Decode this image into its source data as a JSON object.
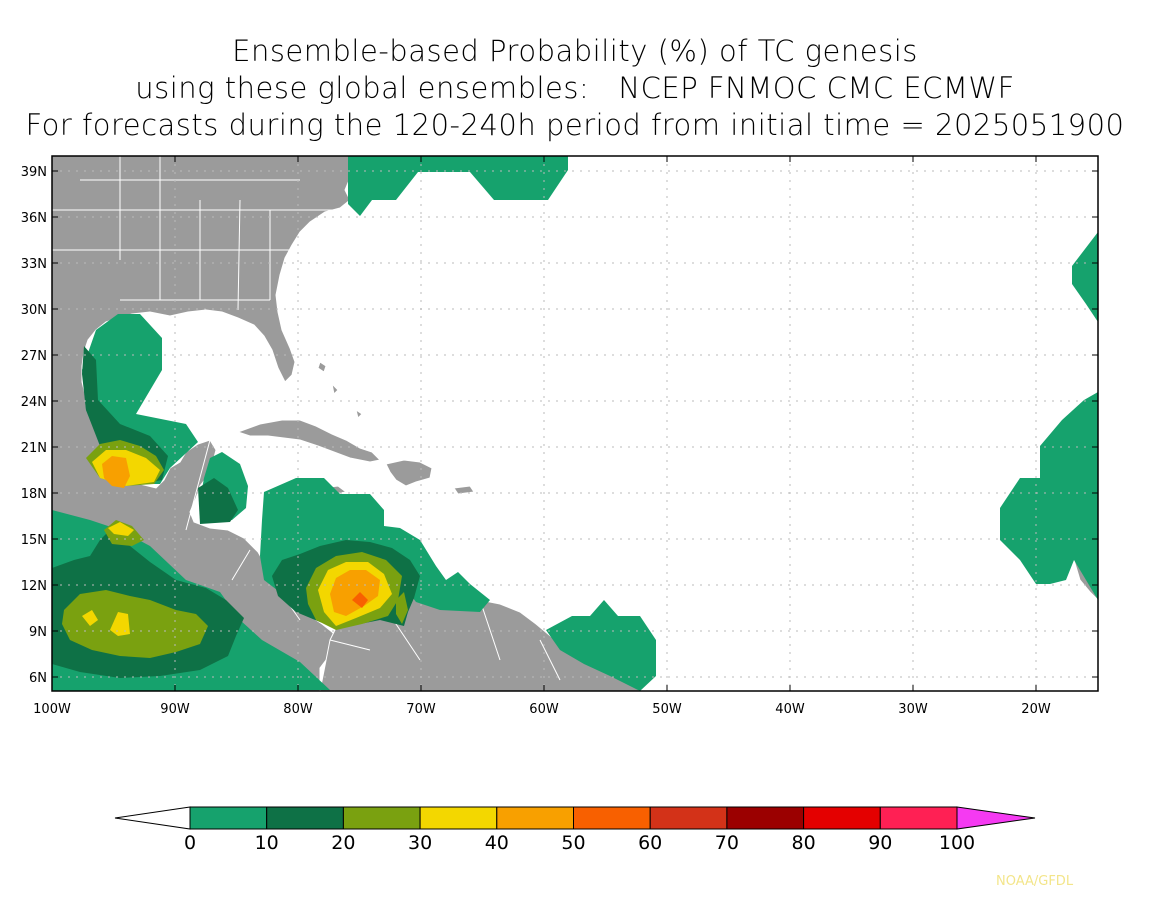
{
  "title": {
    "line1": "Ensemble-based Probability (%) of TC genesis",
    "line2": "using these global ensembles:   NCEP FNMOC CMC ECMWF",
    "line3": "For forecasts during the 120-240h period from initial time = 2025051900"
  },
  "map": {
    "lon_range": [
      -100,
      -15
    ],
    "lat_range": [
      5,
      40
    ],
    "lat_ticks": [
      {
        "value": 39,
        "label": "39N"
      },
      {
        "value": 36,
        "label": "36N"
      },
      {
        "value": 33,
        "label": "33N"
      },
      {
        "value": 30,
        "label": "30N"
      },
      {
        "value": 27,
        "label": "27N"
      },
      {
        "value": 24,
        "label": "24N"
      },
      {
        "value": 21,
        "label": "21N"
      },
      {
        "value": 18,
        "label": "18N"
      },
      {
        "value": 15,
        "label": "15N"
      },
      {
        "value": 12,
        "label": "12N"
      },
      {
        "value": 9,
        "label": "9N"
      },
      {
        "value": 6,
        "label": "6N"
      }
    ],
    "lon_ticks": [
      {
        "value": -100,
        "label": "100W"
      },
      {
        "value": -90,
        "label": "90W"
      },
      {
        "value": -80,
        "label": "80W"
      },
      {
        "value": -70,
        "label": "70W"
      },
      {
        "value": -60,
        "label": "60W"
      },
      {
        "value": -50,
        "label": "50W"
      },
      {
        "value": -40,
        "label": "40W"
      },
      {
        "value": -30,
        "label": "30W"
      },
      {
        "value": -20,
        "label": "20W"
      }
    ],
    "land_color": "#9b9b9b",
    "ocean_color": "#ffffff",
    "grid": "dotted"
  },
  "colorbar": {
    "levels": [
      "0",
      "10",
      "20",
      "30",
      "40",
      "50",
      "60",
      "70",
      "80",
      "90",
      "100"
    ],
    "colors": [
      "#16a26d",
      "#0e7146",
      "#7aa110",
      "#f3d700",
      "#f8a000",
      "#f86000",
      "#d33218",
      "#9b0000",
      "#e40000",
      "#ff2054"
    ],
    "under_color": "#ffffff",
    "over_color": "#f53af2"
  },
  "credit": "NOAA/GFDL"
}
